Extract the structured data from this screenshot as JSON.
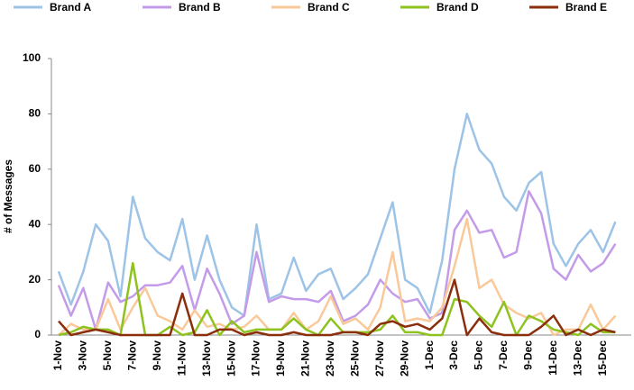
{
  "chart_data": {
    "type": "line",
    "y_label": "# of Messages",
    "legend": "top",
    "categories": [
      "1-Nov",
      null,
      "3-Nov",
      null,
      "5-Nov",
      null,
      "7-Nov",
      null,
      "9-Nov",
      null,
      "11-Nov",
      null,
      "13-Nov",
      null,
      "15-Nov",
      null,
      "17-Nov",
      null,
      "19-Nov",
      null,
      "21-Nov",
      null,
      "23-Nov",
      null,
      "25-Nov",
      null,
      "27-Nov",
      null,
      "29-Nov",
      null,
      "1-Dec",
      null,
      "3-Dec",
      null,
      "5-Dec",
      null,
      "7-Dec",
      null,
      "9-Dec",
      null,
      "11-Dec",
      null,
      "13-Dec",
      null,
      "15-Dec",
      null
    ],
    "ylim": [
      0,
      100
    ],
    "yticks": [
      0,
      20,
      40,
      60,
      80,
      100
    ],
    "series": [
      {
        "name": "Brand A",
        "color": "#9dc3e6",
        "values": [
          23,
          11,
          23,
          40,
          34,
          14,
          50,
          35,
          30,
          27,
          42,
          20,
          36,
          20,
          10,
          7,
          40,
          13,
          15,
          28,
          16,
          22,
          24,
          13,
          17,
          22,
          35,
          48,
          20,
          17,
          8,
          27,
          60,
          80,
          67,
          62,
          50,
          45,
          55,
          59,
          33,
          25,
          33,
          38,
          30,
          41
        ]
      },
      {
        "name": "Brand B",
        "color": "#c39be8",
        "values": [
          18,
          7,
          17,
          2,
          19,
          12,
          14,
          18,
          18,
          19,
          25,
          9,
          24,
          15,
          4,
          7,
          30,
          12,
          14,
          13,
          13,
          12,
          16,
          5,
          7,
          11,
          20,
          15,
          12,
          13,
          6,
          8,
          38,
          45,
          37,
          38,
          28,
          30,
          52,
          44,
          24,
          20,
          29,
          23,
          26,
          33
        ]
      },
      {
        "name": "Brand C",
        "color": "#fac99a",
        "values": [
          0,
          4,
          2,
          2,
          13,
          2,
          10,
          17,
          7,
          5,
          2,
          9,
          3,
          4,
          2,
          3,
          7,
          2,
          2,
          8,
          2,
          5,
          14,
          4,
          6,
          2,
          10,
          30,
          5,
          6,
          5,
          10,
          25,
          42,
          17,
          20,
          11,
          8,
          6,
          8,
          0,
          2,
          2,
          11,
          2,
          7
        ]
      },
      {
        "name": "Brand D",
        "color": "#8dc21f",
        "values": [
          0,
          1,
          3,
          2,
          2,
          0,
          26,
          0,
          0,
          3,
          0,
          1,
          9,
          0,
          5,
          1,
          2,
          2,
          2,
          6,
          2,
          0,
          6,
          1,
          1,
          1,
          2,
          7,
          1,
          1,
          0,
          0,
          13,
          12,
          7,
          3,
          12,
          0,
          7,
          5,
          2,
          1,
          0,
          4,
          1,
          1
        ]
      },
      {
        "name": "Brand E",
        "color": "#8b2e0b",
        "values": [
          5,
          0,
          1,
          2,
          1,
          0,
          0,
          0,
          0,
          0,
          15,
          0,
          0,
          2,
          2,
          0,
          1,
          0,
          0,
          1,
          0,
          0,
          0,
          1,
          1,
          0,
          4,
          5,
          3,
          4,
          2,
          6,
          20,
          0,
          6,
          1,
          0,
          0,
          0,
          3,
          7,
          0,
          2,
          0,
          2,
          1
        ]
      }
    ]
  }
}
